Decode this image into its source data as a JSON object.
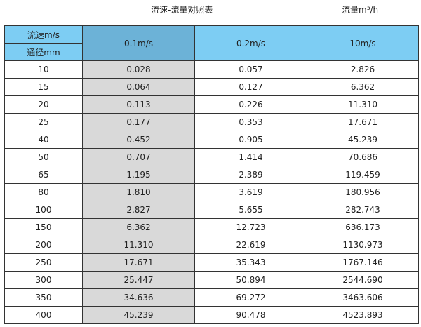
{
  "title": "流速-流量对照表",
  "unit_label": "流量m³/h",
  "header": {
    "velocity_label": "流速m/s",
    "diameter_label": "通径mm",
    "columns": [
      "0.1m/s",
      "0.2m/s",
      "10m/s"
    ]
  },
  "colors": {
    "header": "#7dcdf3",
    "header_selected": "#6cb2d7",
    "highlight_column": "#d9d9d9"
  },
  "rows": [
    [
      "10",
      "0.028",
      "0.057",
      "2.826"
    ],
    [
      "15",
      "0.064",
      "0.127",
      "6.362"
    ],
    [
      "20",
      "0.113",
      "0.226",
      "11.310"
    ],
    [
      "25",
      "0.177",
      "0.353",
      "17.671"
    ],
    [
      "40",
      "0.452",
      "0.905",
      "45.239"
    ],
    [
      "50",
      "0.707",
      "1.414",
      "70.686"
    ],
    [
      "65",
      "1.195",
      "2.389",
      "119.459"
    ],
    [
      "80",
      "1.810",
      "3.619",
      "180.956"
    ],
    [
      "100",
      "2.827",
      "5.655",
      "282.743"
    ],
    [
      "150",
      "6.362",
      "12.723",
      "636.173"
    ],
    [
      "200",
      "11.310",
      "22.619",
      "1130.973"
    ],
    [
      "250",
      "17.671",
      "35.343",
      "1767.146"
    ],
    [
      "300",
      "25.447",
      "50.894",
      "2544.690"
    ],
    [
      "350",
      "34.636",
      "69.272",
      "3463.606"
    ],
    [
      "400",
      "45.239",
      "90.478",
      "4523.893"
    ]
  ]
}
